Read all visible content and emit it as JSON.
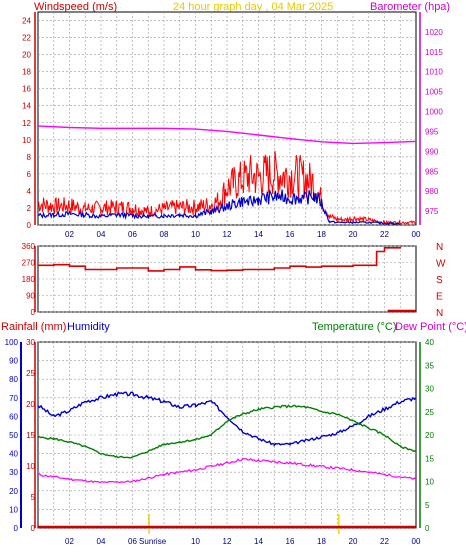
{
  "chart_data": [
    {
      "type": "line",
      "title": "24 hour graph day , 04 Mar 2025",
      "left_axis_label": "Windspeed (m/s)",
      "right_axis_label": "Barometer (hpa)",
      "x_ticks": [
        "02",
        "04",
        "06",
        "08",
        "10",
        "12",
        "14",
        "16",
        "18",
        "20",
        "22",
        "00"
      ],
      "y_left_ticks": [
        0,
        2,
        4,
        6,
        8,
        10,
        12,
        14,
        16,
        18,
        20,
        22,
        24
      ],
      "y_left_range": [
        0,
        25
      ],
      "y_right_ticks": [
        975,
        980,
        985,
        990,
        995,
        1000,
        1005,
        1010,
        1015,
        1020
      ],
      "y_right_range": [
        971.5,
        1025
      ],
      "grid": true,
      "series": [
        {
          "name": "Windspeed",
          "color": "#ff0000",
          "axis": "left",
          "x": [
            0,
            1,
            2,
            3,
            4,
            5,
            6,
            7,
            8,
            9,
            10,
            11,
            11.5,
            12,
            12.5,
            13,
            13.5,
            14,
            14.5,
            15,
            15.5,
            16,
            16.5,
            17,
            17.5,
            18,
            18.5,
            19,
            19.5,
            20,
            20.5,
            21,
            22,
            23,
            24
          ],
          "values": [
            2.5,
            2.2,
            2.3,
            1.9,
            2.0,
            2.1,
            2.0,
            1.6,
            1.9,
            2.1,
            2.1,
            2.4,
            2.9,
            4.4,
            4.9,
            5.4,
            5.8,
            5.6,
            6.0,
            6.1,
            5.9,
            5.8,
            5.8,
            5.4,
            5.0,
            3.0,
            1.0,
            0.7,
            0.6,
            0.8,
            0.7,
            0.6,
            0.3,
            0.3,
            0.3
          ]
        },
        {
          "name": "Wind average",
          "color": "#0000cc",
          "axis": "left",
          "x": [
            0,
            1,
            2,
            3,
            4,
            5,
            6,
            7,
            8,
            9,
            10,
            11,
            11.5,
            12,
            12.5,
            13,
            13.5,
            14,
            14.5,
            15,
            15.5,
            16,
            16.5,
            17,
            17.5,
            18,
            18.5,
            19,
            20,
            21,
            22,
            23
          ],
          "values": [
            1.1,
            1.2,
            1.3,
            1.2,
            1.0,
            1.2,
            1.1,
            1.0,
            1.1,
            1.2,
            1.1,
            1.6,
            1.8,
            2.2,
            2.5,
            2.8,
            2.7,
            3.0,
            3.2,
            3.3,
            3.3,
            3.1,
            3.2,
            3.1,
            3.5,
            2.6,
            0.4,
            0.3,
            0.3,
            0.3,
            0.2,
            0.2
          ]
        },
        {
          "name": "Barometer",
          "color": "#ff00ff",
          "axis": "right",
          "x": [
            0,
            2,
            4,
            6,
            8,
            10,
            12,
            14,
            16,
            18,
            20,
            22,
            24
          ],
          "values": [
            996.4,
            996.0,
            995.8,
            995.8,
            995.8,
            995.6,
            995.0,
            994.1,
            993.2,
            992.4,
            992.0,
            992.2,
            992.5
          ]
        }
      ]
    },
    {
      "type": "line",
      "title": "",
      "x_ticks": [
        "02",
        "04",
        "06",
        "08",
        "10",
        "12",
        "14",
        "16",
        "18",
        "20",
        "22",
        "00"
      ],
      "y_left_ticks": [
        0,
        90,
        180,
        270,
        360
      ],
      "y_left_range": [
        0,
        360
      ],
      "y_right_ticks": [
        "N",
        "W",
        "S",
        "E",
        "N"
      ],
      "grid": true,
      "series": [
        {
          "name": "Wind direction",
          "color": "#dd0000",
          "x": [
            0,
            1,
            2,
            3,
            4,
            5,
            6,
            7,
            8,
            9,
            10,
            11,
            12,
            13,
            14,
            15,
            16,
            17,
            18,
            19,
            20,
            21,
            21.5,
            22,
            23
          ],
          "values": [
            255,
            258,
            250,
            232,
            232,
            240,
            240,
            224,
            232,
            246,
            230,
            226,
            228,
            232,
            232,
            240,
            250,
            245,
            250,
            250,
            255,
            255,
            330,
            350,
            355
          ]
        }
      ]
    },
    {
      "type": "line",
      "title": "",
      "left_axis_labels": [
        "Rainfall (mm)",
        "Humidity"
      ],
      "right_axis_labels": [
        "Temperature (°C)",
        "Dew Point (°C)"
      ],
      "x_ticks": [
        "02",
        "04",
        "06",
        "Sunrise",
        "Sunset",
        "10",
        "12",
        "14",
        "16",
        "18",
        "20",
        "22",
        "00"
      ],
      "x_ticks_numeric": [
        "02",
        "04",
        "06",
        "10",
        "12",
        "14",
        "16",
        "18",
        "20",
        "22",
        "00"
      ],
      "sun_labels": [
        "Sunrise"
      ],
      "y_humidity_ticks": [
        0,
        10,
        20,
        30,
        40,
        50,
        60,
        70,
        80,
        90,
        100
      ],
      "y_rain_ticks": [
        0,
        5,
        10,
        15,
        20,
        25,
        30
      ],
      "y_temp_ticks": [
        0,
        5,
        10,
        15,
        20,
        25,
        30,
        35,
        40
      ],
      "grid": true,
      "series": [
        {
          "name": "Humidity",
          "color": "#0000cc",
          "axis": "humidity",
          "x": [
            0,
            1,
            2,
            3,
            4,
            5,
            6,
            7,
            8,
            9,
            10,
            11,
            12,
            13,
            14,
            15,
            16,
            17,
            18,
            19,
            20,
            21,
            22,
            23,
            24
          ],
          "values": [
            66,
            60,
            63,
            68,
            70,
            72,
            72,
            70,
            68,
            65,
            66,
            68,
            60,
            52,
            48,
            45,
            45,
            47,
            49,
            51,
            55,
            60,
            64,
            68,
            70
          ]
        },
        {
          "name": "Temperature",
          "color": "#008000",
          "axis": "temp",
          "x": [
            0,
            1,
            2,
            3,
            4,
            5,
            6,
            7,
            8,
            9,
            10,
            11,
            11.5,
            12,
            13,
            14,
            15,
            16,
            17,
            18,
            19,
            20,
            21,
            22,
            23,
            24
          ],
          "values": [
            19.5,
            19.2,
            18.5,
            17.5,
            16.0,
            15.3,
            15.2,
            16.5,
            18.0,
            18.5,
            19.0,
            20.0,
            21.5,
            23.0,
            24.5,
            25.5,
            26.0,
            26.2,
            26.0,
            25.0,
            24.5,
            23.0,
            21.5,
            20.0,
            17.5,
            16.5
          ]
        },
        {
          "name": "Dew Point",
          "color": "#ff00ff",
          "axis": "temp",
          "x": [
            0,
            2,
            4,
            6,
            8,
            10,
            12,
            13,
            14,
            16,
            18,
            20,
            22,
            24
          ],
          "values": [
            11.5,
            10.5,
            9.8,
            10.0,
            11.5,
            12.5,
            14.0,
            14.8,
            14.5,
            14.0,
            13.2,
            12.5,
            11.5,
            10.5
          ]
        },
        {
          "name": "Rainfall",
          "color": "#cc0000",
          "axis": "rain",
          "x": [
            0,
            24
          ],
          "values": [
            0,
            0
          ]
        }
      ]
    }
  ]
}
